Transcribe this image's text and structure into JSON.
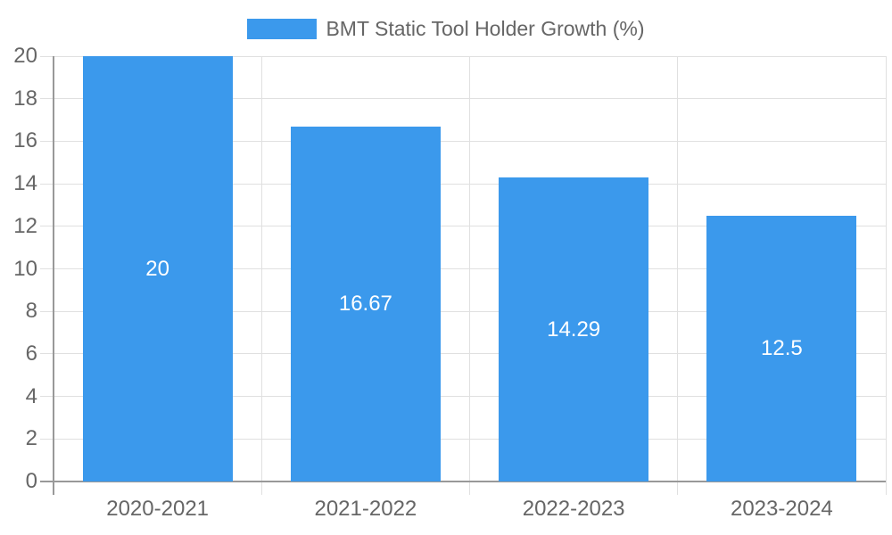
{
  "legend": {
    "label": "BMT Static Tool Holder Growth (%)"
  },
  "colors": {
    "bar": "#3B99EC",
    "grid": "#e0e0e0",
    "axis": "#999999",
    "axis_text": "#666666",
    "legend_text": "#666666",
    "value_text": "#ffffff",
    "background": "#ffffff"
  },
  "chart_data": {
    "type": "bar",
    "title": "BMT Static Tool Holder Growth (%)",
    "categories": [
      "2020-2021",
      "2021-2022",
      "2022-2023",
      "2023-2024"
    ],
    "values": [
      20,
      16.67,
      14.29,
      12.5
    ],
    "value_labels": [
      "20",
      "16.67",
      "14.29",
      "12.5"
    ],
    "xlabel": "",
    "ylabel": "",
    "ylim": [
      0,
      20
    ],
    "ytick_step": 2,
    "ytick_labels": [
      "0",
      "2",
      "4",
      "6",
      "8",
      "10",
      "12",
      "14",
      "16",
      "18",
      "20"
    ],
    "grid": true,
    "legend_position": "top-center",
    "bar_color": "#3B99EC",
    "value_label_position": "center-inside"
  }
}
